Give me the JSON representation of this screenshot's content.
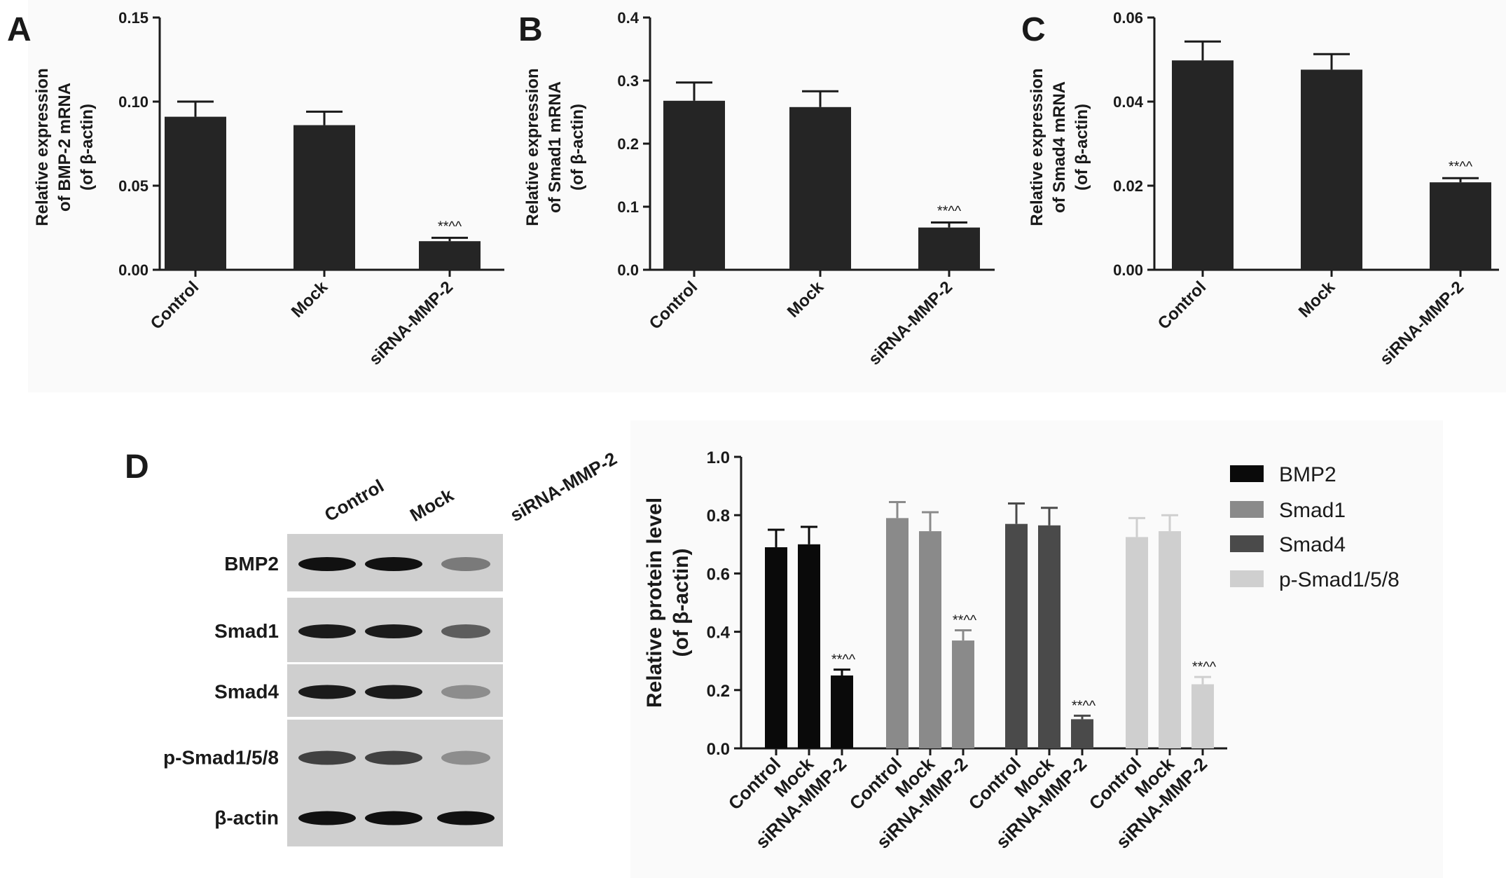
{
  "chart_data": [
    {
      "panel": "A",
      "type": "bar",
      "ylabel": [
        "Relative expression",
        "of BMP-2 mRNA",
        "(of β-actin)"
      ],
      "ylim": [
        0,
        0.15
      ],
      "yticks": [
        "0.00",
        "0.05",
        "0.10",
        "0.15"
      ],
      "categories": [
        "Control",
        "Mock",
        "siRNA-MMP-2"
      ],
      "values": [
        0.091,
        0.086,
        0.017
      ],
      "errors": [
        0.009,
        0.008,
        0.002
      ],
      "annotations": [
        "",
        "",
        "**^^"
      ],
      "bar_color": "#252525"
    },
    {
      "panel": "B",
      "type": "bar",
      "ylabel": [
        "Relative expression",
        "of Smad1 mRNA",
        "(of β-actin)"
      ],
      "ylim": [
        0,
        0.4
      ],
      "yticks": [
        "0.0",
        "0.1",
        "0.2",
        "0.3",
        "0.4"
      ],
      "categories": [
        "Control",
        "Mock",
        "siRNA-MMP-2"
      ],
      "values": [
        0.268,
        0.258,
        0.067
      ],
      "errors": [
        0.029,
        0.025,
        0.008
      ],
      "annotations": [
        "",
        "",
        "**^^"
      ],
      "bar_color": "#252525"
    },
    {
      "panel": "C",
      "type": "bar",
      "ylabel": [
        "Relative expression",
        "of Smad4 mRNA",
        "(of β-actin)"
      ],
      "ylim": [
        0,
        0.06
      ],
      "yticks": [
        "0.00",
        "0.02",
        "0.04",
        "0.06"
      ],
      "categories": [
        "Control",
        "Mock",
        "siRNA-MMP-2"
      ],
      "values": [
        0.0498,
        0.0476,
        0.0208
      ],
      "errors": [
        0.0045,
        0.0037,
        0.001
      ],
      "annotations": [
        "",
        "",
        "**^^"
      ],
      "bar_color": "#252525"
    },
    {
      "panel": "D",
      "type": "bar",
      "ylabel": [
        "Relative protein level",
        "(of  β-actin)"
      ],
      "ylim": [
        0,
        1.0
      ],
      "yticks": [
        "0.0",
        "0.2",
        "0.4",
        "0.6",
        "0.8",
        "1.0"
      ],
      "categories": [
        "Control",
        "Mock",
        "siRNA-MMP-2"
      ],
      "legend_position": "right",
      "series": [
        {
          "name": "BMP2",
          "color": "#0a0a0a",
          "values": [
            0.69,
            0.7,
            0.25
          ],
          "errors": [
            0.06,
            0.06,
            0.02
          ],
          "annotations": [
            "",
            "",
            "**^^"
          ]
        },
        {
          "name": "Smad1",
          "color": "#8a8a8a",
          "values": [
            0.79,
            0.745,
            0.37
          ],
          "errors": [
            0.055,
            0.065,
            0.035
          ],
          "annotations": [
            "",
            "",
            "**^^"
          ]
        },
        {
          "name": "Smad4",
          "color": "#4a4a4a",
          "values": [
            0.77,
            0.765,
            0.1
          ],
          "errors": [
            0.07,
            0.06,
            0.012
          ],
          "annotations": [
            "",
            "",
            "**^^"
          ]
        },
        {
          "name": "p-Smad1/5/8",
          "color": "#cfcfcf",
          "values": [
            0.725,
            0.745,
            0.22
          ],
          "errors": [
            0.065,
            0.055,
            0.025
          ],
          "annotations": [
            "",
            "",
            "**^^"
          ]
        }
      ]
    }
  ],
  "panel_labels": [
    "A",
    "B",
    "C",
    "D"
  ],
  "western_blot": {
    "lanes": [
      "Control",
      "Mock",
      "siRNA-MMP-2"
    ],
    "bands": [
      {
        "name": "BMP2",
        "intensity": [
          1.0,
          1.0,
          0.45
        ]
      },
      {
        "name": "Smad1",
        "intensity": [
          0.95,
          0.95,
          0.6
        ]
      },
      {
        "name": "Smad4",
        "intensity": [
          0.95,
          0.95,
          0.35
        ]
      },
      {
        "name": "p-Smad1/5/8",
        "intensity": [
          0.75,
          0.75,
          0.35
        ]
      },
      {
        "name": "β-actin",
        "intensity": [
          1.0,
          1.0,
          1.0
        ]
      }
    ]
  }
}
